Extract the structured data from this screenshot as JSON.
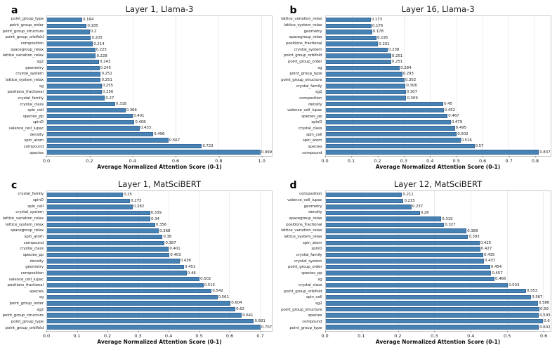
{
  "style": {
    "bar_color": "#4682b4",
    "bar_edge_color": "#39699a",
    "grid_color": "#ececec",
    "axis_border_color": "#c9c9c9"
  },
  "chart_data": [
    {
      "type": "bar",
      "orientation": "horizontal",
      "panel_letter": "a",
      "title": "Layer 1, Llama-3",
      "xlabel": "Average Normalized Attention Score (0-1)",
      "grid": true,
      "categories": [
        "point_group_type",
        "point_group_order",
        "point_group_structure",
        "point_group_orbifold",
        "composition",
        "spacegroup_relax",
        "lattice_variation_relax",
        "sg2",
        "geometry",
        "crystal_system",
        "lattice_system_relax",
        "sg",
        "positions_fractional",
        "crystal_family",
        "crystal_class",
        "spin_cell",
        "species_pp",
        "spinD",
        "valence_cell_iupac",
        "density",
        "spin_atom",
        "compound",
        "species"
      ],
      "values": [
        0.164,
        0.185,
        0.2,
        0.205,
        0.214,
        0.225,
        0.228,
        0.243,
        0.245,
        0.251,
        0.251,
        0.255,
        0.256,
        0.27,
        0.318,
        0.366,
        0.401,
        0.408,
        0.433,
        0.496,
        0.567,
        0.723,
        0.999
      ],
      "xticks": [
        0.0,
        0.2,
        0.4,
        0.6,
        0.8,
        1.0
      ],
      "xlim": [
        0,
        1.05
      ]
    },
    {
      "type": "bar",
      "orientation": "horizontal",
      "panel_letter": "b",
      "title": "Layer 16, Llama-3",
      "xlabel": "Average Normalized Attention Score (0-1)",
      "grid": true,
      "categories": [
        "lattice_variation_relax",
        "lattice_system_relax",
        "geometry",
        "spacegroup_relax",
        "positions_fractional",
        "crystal_system",
        "point_group_orbifold",
        "point_group_order",
        "sg",
        "point_group_type",
        "point_group_structure",
        "crystal_family",
        "sg2",
        "composition",
        "density",
        "valence_cell_iupac",
        "species_pp",
        "spinD",
        "crystal_class",
        "spin_cell",
        "spin_atom",
        "species",
        "compound"
      ],
      "values": [
        0.173,
        0.176,
        0.178,
        0.195,
        0.201,
        0.238,
        0.251,
        0.251,
        0.284,
        0.293,
        0.302,
        0.306,
        0.307,
        0.309,
        0.45,
        0.452,
        0.467,
        0.479,
        0.495,
        0.502,
        0.516,
        0.57,
        0.837
      ],
      "xticks": [
        0.0,
        0.1,
        0.2,
        0.3,
        0.4,
        0.5,
        0.6,
        0.7,
        0.8
      ],
      "xlim": [
        0,
        0.86
      ]
    },
    {
      "type": "bar",
      "orientation": "horizontal",
      "panel_letter": "c",
      "title": "Layer 1, MatSciBERT",
      "xlabel": "Average Normalized Attention Score (0-1)",
      "grid": true,
      "categories": [
        "crystal_family",
        "spinD",
        "spin_cell",
        "crystal_system",
        "lattice_variation_relax",
        "lattice_system_relax",
        "spacegroup_relax",
        "spin_atom",
        "compound",
        "crystal_class",
        "species_pp",
        "density",
        "geometry",
        "composition",
        "valence_cell_iupac",
        "positions_fractional",
        "species",
        "sg",
        "point_group_order",
        "sg2",
        "point_group_structure",
        "point_group_type",
        "point_group_orbifold"
      ],
      "values": [
        0.25,
        0.273,
        0.282,
        0.339,
        0.34,
        0.356,
        0.368,
        0.38,
        0.387,
        0.401,
        0.403,
        0.436,
        0.451,
        0.46,
        0.502,
        0.515,
        0.542,
        0.561,
        0.604,
        0.62,
        0.641,
        0.681,
        0.707
      ],
      "xticks": [
        0.0,
        0.1,
        0.2,
        0.3,
        0.4,
        0.5,
        0.6,
        0.7
      ],
      "xlim": [
        0,
        0.74
      ]
    },
    {
      "type": "bar",
      "orientation": "horizontal",
      "panel_letter": "d",
      "title": "Layer 12, MatSciBERT",
      "xlabel": "Average Normalized Attention Score (0-1)",
      "grid": true,
      "categories": [
        "composition",
        "valence_cell_iupac",
        "geometry",
        "density",
        "spacegroup_relax",
        "positions_fractional",
        "lattice_variation_relax",
        "lattice_system_relax",
        "spin_atom",
        "spinD",
        "crystal_family",
        "crystal_system",
        "point_group_order",
        "species_pp",
        "sg",
        "crystal_class",
        "point_group_orbifold",
        "spin_cell",
        "sg2",
        "point_group_structure",
        "species",
        "compound",
        "point_group_type"
      ],
      "values": [
        0.211,
        0.215,
        0.237,
        0.26,
        0.319,
        0.327,
        0.389,
        0.393,
        0.425,
        0.427,
        0.435,
        0.437,
        0.454,
        0.457,
        0.466,
        0.503,
        0.553,
        0.567,
        0.586,
        0.59,
        0.593,
        0.6,
        0.602
      ],
      "xticks": [
        0.0,
        0.1,
        0.2,
        0.3,
        0.4,
        0.5,
        0.6
      ],
      "xlim": [
        0,
        0.62
      ]
    }
  ]
}
